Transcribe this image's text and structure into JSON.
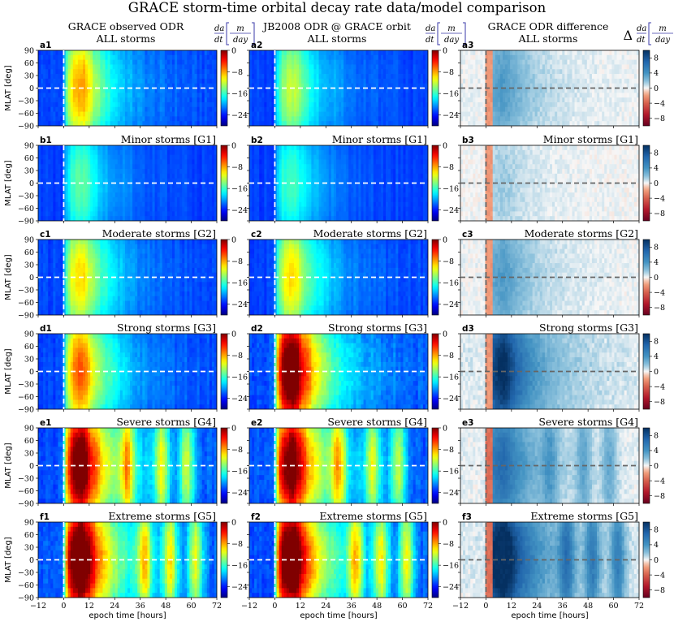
{
  "chart_data": {
    "type": "heatmap",
    "title": "GRACE storm-time orbital decay rate data/model comparison",
    "columns": [
      {
        "id": "obs",
        "heading_line1": "GRACE observed ODR",
        "heading_line2": "ALL storms",
        "unit_num_sym": "da",
        "unit_den_sym": "dt",
        "unit_num": "m",
        "unit_den": "day",
        "colormap": "jet",
        "colorbar_ticks": [
          "0",
          "−8",
          "−16",
          "−24"
        ],
        "colorbar_values": [
          0,
          -8,
          -16,
          -24
        ],
        "range": [
          0,
          -28
        ]
      },
      {
        "id": "model",
        "heading_line1": "JB2008 ODR @ GRACE orbit",
        "heading_line2": "ALL storms",
        "unit_num_sym": "da",
        "unit_den_sym": "dt",
        "unit_num": "m",
        "unit_den": "day",
        "colormap": "jet",
        "colorbar_ticks": [
          "0",
          "−8",
          "−16",
          "−24"
        ],
        "colorbar_values": [
          0,
          -8,
          -16,
          -24
        ],
        "range": [
          0,
          -28
        ]
      },
      {
        "id": "diff",
        "heading_line1": "GRACE ODR difference",
        "heading_line2": "ALL storms",
        "unit_prefix": "Δ",
        "unit_num_sym": "da",
        "unit_den_sym": "dt",
        "unit_num": "m",
        "unit_den": "day",
        "colormap": "RdBu",
        "colorbar_ticks": [
          "8",
          "4",
          "0",
          "−4",
          "−8"
        ],
        "colorbar_values": [
          8,
          4,
          0,
          -4,
          -8
        ],
        "range": [
          10,
          -10
        ]
      }
    ],
    "rows": [
      {
        "letter": "a",
        "label": "",
        "intensity": [
          0.55,
          0.4,
          -0.3
        ]
      },
      {
        "letter": "b",
        "label": "Minor storms [G1]",
        "intensity": [
          0.3,
          0.28,
          -0.12
        ]
      },
      {
        "letter": "c",
        "label": "Moderate storms [G2]",
        "intensity": [
          0.5,
          0.48,
          -0.3
        ]
      },
      {
        "letter": "d",
        "label": "Strong storms [G3]",
        "intensity": [
          0.62,
          0.95,
          -0.85
        ]
      },
      {
        "letter": "e",
        "label": "Severe storms [G4]",
        "intensity": [
          0.92,
          0.9,
          -0.55
        ]
      },
      {
        "letter": "f",
        "label": "Extreme storms [G5]",
        "intensity": [
          1.0,
          1.0,
          -1.0
        ]
      }
    ],
    "xlabel": "epoch time [hours]",
    "ylabel": "MLAT [deg]",
    "xlim": [
      -12,
      72
    ],
    "ylim": [
      -90,
      90
    ],
    "xticks": [
      -12,
      0,
      12,
      24,
      36,
      48,
      60,
      72
    ],
    "xtick_labels": [
      "−12",
      "0",
      "12",
      "24",
      "36",
      "48",
      "60",
      "72"
    ],
    "yticks": [
      90,
      60,
      30,
      0,
      -30,
      -60,
      -90
    ],
    "ytick_labels": [
      "90",
      "60",
      "30",
      "0",
      "−30",
      "−60",
      "−90"
    ],
    "reference_lines": {
      "epoch_zero_hours": 0,
      "mlat_zero_deg": 0
    }
  }
}
